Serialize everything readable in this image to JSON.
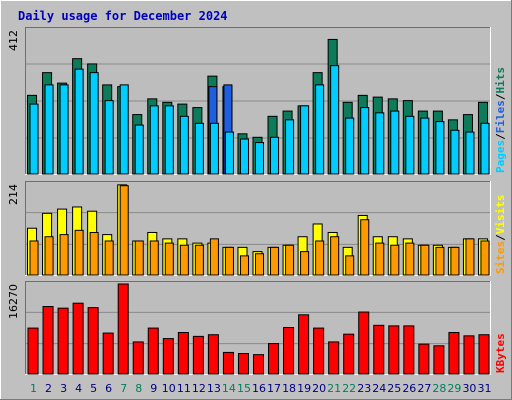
{
  "chart_data": [
    {
      "type": "bar",
      "panel": "hits-files-pages",
      "title": "Daily usage for December 2024",
      "ylabel_parts": [
        "Pages",
        "Files",
        "Hits"
      ],
      "ylabel_sep": "/",
      "ymax_label": "412",
      "ylim": [
        0,
        412
      ],
      "categories": [
        "1",
        "2",
        "3",
        "4",
        "5",
        "6",
        "7",
        "8",
        "9",
        "10",
        "11",
        "12",
        "13",
        "14",
        "15",
        "16",
        "17",
        "18",
        "19",
        "20",
        "21",
        "22",
        "23",
        "24",
        "25",
        "26",
        "27",
        "28",
        "29",
        "30",
        "31"
      ],
      "weekend_days": [
        "1",
        "7",
        "8",
        "14",
        "15",
        "21",
        "22",
        "28",
        "29"
      ],
      "highlight_days": [
        "13",
        "14"
      ],
      "series": [
        {
          "name": "Hits",
          "color": "#0d7a5a",
          "values": [
            225,
            290,
            260,
            330,
            315,
            255,
            250,
            170,
            215,
            205,
            200,
            190,
            280,
            250,
            115,
            105,
            165,
            180,
            195,
            290,
            385,
            205,
            225,
            220,
            215,
            210,
            180,
            180,
            155,
            170,
            205
          ]
        },
        {
          "name": "Files",
          "color": "#1e5ee0",
          "values": [
            0,
            0,
            0,
            0,
            0,
            0,
            0,
            0,
            0,
            0,
            0,
            0,
            250,
            255,
            0,
            0,
            0,
            0,
            0,
            0,
            0,
            0,
            0,
            0,
            0,
            0,
            0,
            0,
            0,
            0,
            0
          ]
        },
        {
          "name": "Pages",
          "color": "#00ccff",
          "values": [
            200,
            255,
            255,
            300,
            290,
            210,
            255,
            140,
            195,
            195,
            165,
            145,
            145,
            120,
            100,
            90,
            105,
            155,
            195,
            255,
            310,
            160,
            190,
            175,
            180,
            165,
            160,
            150,
            125,
            120,
            145
          ]
        }
      ]
    },
    {
      "type": "bar",
      "panel": "visits-sites",
      "ylabel_parts": [
        "Sites",
        "Visits"
      ],
      "ylabel_sep": "/",
      "ymax_label": "214",
      "ylim": [
        0,
        214
      ],
      "categories": [
        "1",
        "2",
        "3",
        "4",
        "5",
        "6",
        "7",
        "8",
        "9",
        "10",
        "11",
        "12",
        "13",
        "14",
        "15",
        "16",
        "17",
        "18",
        "19",
        "20",
        "21",
        "22",
        "23",
        "24",
        "25",
        "26",
        "27",
        "28",
        "29",
        "30",
        "31"
      ],
      "series": [
        {
          "name": "Visits",
          "color": "#ffff00",
          "values": [
            110,
            145,
            155,
            160,
            150,
            95,
            212,
            80,
            100,
            85,
            85,
            75,
            75,
            65,
            65,
            55,
            65,
            70,
            90,
            120,
            100,
            65,
            140,
            90,
            90,
            85,
            70,
            70,
            65,
            85,
            85
          ]
        },
        {
          "name": "Sites",
          "color": "#ff9900",
          "values": [
            80,
            90,
            95,
            105,
            100,
            80,
            210,
            80,
            80,
            75,
            70,
            70,
            85,
            65,
            45,
            50,
            65,
            70,
            55,
            80,
            90,
            45,
            130,
            75,
            70,
            75,
            70,
            65,
            65,
            85,
            80
          ]
        }
      ]
    },
    {
      "type": "bar",
      "panel": "kbytes",
      "ylabel_parts": [
        "KBytes"
      ],
      "ylabel_sep": "",
      "ymax_label": "16270",
      "ylim": [
        0,
        16270
      ],
      "categories": [
        "1",
        "2",
        "3",
        "4",
        "5",
        "6",
        "7",
        "8",
        "9",
        "10",
        "11",
        "12",
        "13",
        "14",
        "15",
        "16",
        "17",
        "18",
        "19",
        "20",
        "21",
        "22",
        "23",
        "24",
        "25",
        "26",
        "27",
        "28",
        "29",
        "30",
        "31"
      ],
      "series": [
        {
          "name": "KBytes",
          "color": "#ff0000",
          "values": [
            8300,
            12200,
            11900,
            12800,
            12000,
            7400,
            16270,
            5800,
            8300,
            6400,
            7500,
            6800,
            7100,
            3900,
            3700,
            3500,
            5500,
            8400,
            10700,
            8300,
            5800,
            7200,
            11200,
            8800,
            8700,
            8700,
            5400,
            5100,
            7500,
            6900,
            7100
          ]
        }
      ]
    }
  ],
  "axis": {
    "day_label_color_normal": "#000080",
    "day_label_color_weekend": "#00805a"
  },
  "colors": {
    "frame": "#c0c0c0",
    "plot_bg": "#bdbdbd",
    "title": "#0000c0",
    "gridline": "#8a8a8a"
  }
}
